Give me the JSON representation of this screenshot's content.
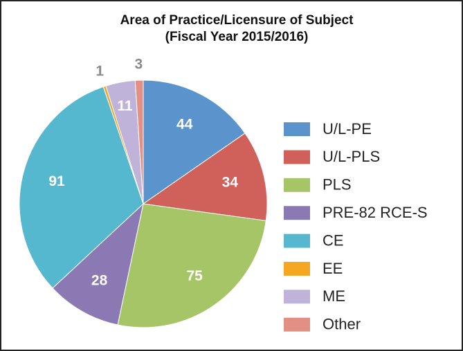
{
  "chart_data": {
    "type": "pie",
    "title": "Area of Practice/Licensure of Subject",
    "subtitle": "(Fiscal Year 2015/2016)",
    "categories": [
      "U/L-PE",
      "U/L-PLS",
      "PLS",
      "PRE-82 RCE-S",
      "CE",
      "EE",
      "ME",
      "Other"
    ],
    "values": [
      44,
      34,
      75,
      28,
      91,
      1,
      11,
      3
    ],
    "colors": [
      "#5b93cd",
      "#d0605a",
      "#a5c566",
      "#8b79b4",
      "#56b8cf",
      "#f5a623",
      "#c0b3d9",
      "#e28f84"
    ],
    "legend": "right"
  }
}
